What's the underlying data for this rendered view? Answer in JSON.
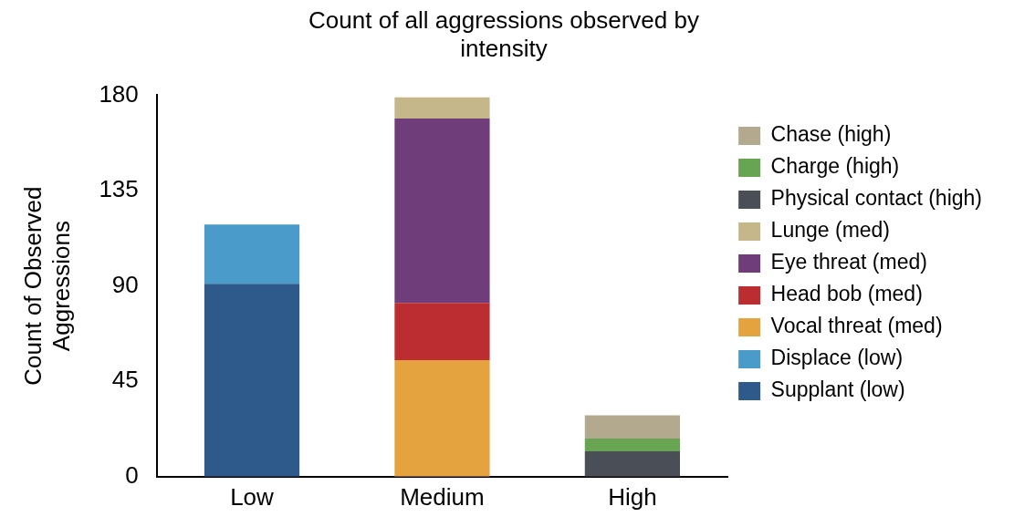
{
  "chart_data": {
    "type": "bar",
    "title": "Count of all aggressions observed by intensity",
    "ylabel": "Count of Observed Aggressions",
    "categories": [
      "Low",
      "Medium",
      "High"
    ],
    "stacked": true,
    "ylim": [
      0,
      180
    ],
    "yticks": [
      0,
      45,
      90,
      135,
      180
    ],
    "grid": false,
    "legend": "right",
    "series": [
      {
        "name": "Supplant (low)",
        "color": "#2e5a8b",
        "values": [
          91,
          null,
          null
        ]
      },
      {
        "name": "Displace (low)",
        "color": "#4a9bca",
        "values": [
          28,
          null,
          null
        ]
      },
      {
        "name": "Vocal threat (med)",
        "color": "#e5a33f",
        "values": [
          null,
          55,
          null
        ]
      },
      {
        "name": "Head bob (med)",
        "color": "#bb2d31",
        "values": [
          null,
          27,
          null
        ]
      },
      {
        "name": "Eye threat (med)",
        "color": "#6f3d7a",
        "values": [
          null,
          87,
          null
        ]
      },
      {
        "name": "Lunge (med)",
        "color": "#c6b78b",
        "values": [
          null,
          10,
          null
        ]
      },
      {
        "name": "Physical contact (high)",
        "color": "#4a4f57",
        "values": [
          null,
          null,
          12
        ]
      },
      {
        "name": "Charge (high)",
        "color": "#67a553",
        "values": [
          null,
          null,
          6
        ]
      },
      {
        "name": "Chase (high)",
        "color": "#b2a98f",
        "values": [
          null,
          null,
          11
        ]
      }
    ]
  }
}
